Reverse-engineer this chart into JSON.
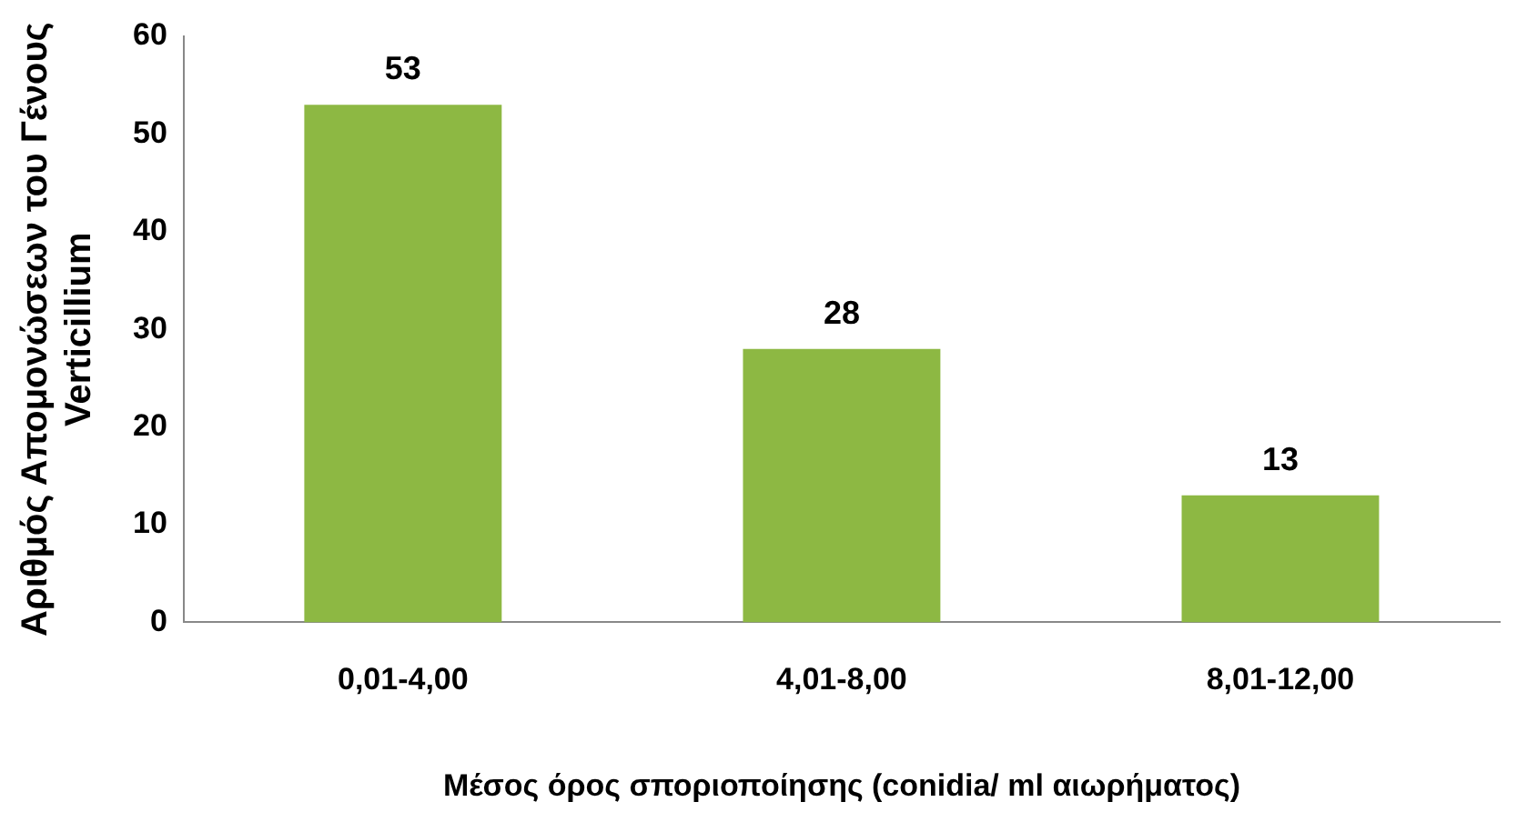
{
  "chart_data": {
    "type": "bar",
    "categories": [
      "0,01-4,00",
      "4,01-8,00",
      "8,01-12,00"
    ],
    "values": [
      53,
      28,
      13
    ],
    "color": "#8db843",
    "xlabel": "Μέσος όρος σποριοποίησης (conidia/ ml αιωρήματος)",
    "ylabel": "Αριθμός Απομονώσεων του Γένους Verticillium",
    "ylim": [
      0,
      60
    ],
    "yticks": [
      0,
      10,
      20,
      30,
      40,
      50,
      60
    ],
    "grid": false,
    "legend": false,
    "data_labels": true
  }
}
